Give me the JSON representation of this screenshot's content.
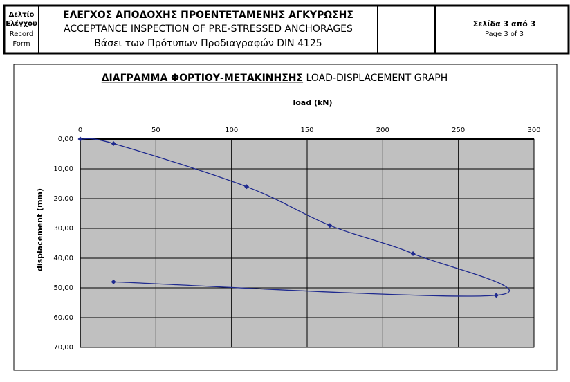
{
  "header": {
    "form_label": [
      "Δελτίο",
      "Ελέγχου",
      "Record",
      "Form"
    ],
    "title": [
      "ΕΛΕΓΧΟΣ ΑΠΟΔΟΧΗΣ ΠΡΟΕΝΤΕΤΑΜΕΝΗΣ ΑΓΚΥΡΩΣΗΣ",
      "ACCEPTANCE INSPECTION OF PRE-STRESSED ANCHORAGES",
      "Βάσει των Πρότυπων Προδιαγραφών DIN 4125"
    ],
    "page": [
      "Σελίδα 3 από 3",
      "Page 3 of 3"
    ]
  },
  "chart_data": {
    "type": "line",
    "title": "ΔΙΑΓΡΑΜΜΑ ΦΟΡΤΙΟΥ-ΜΕΤΑΚΙΝΗΣΗΣ",
    "subtitle": "LOAD-DISPLACEMENT GRAPH",
    "x_label": "load (kN)",
    "y_label": "displacement (mm)",
    "xlim": [
      0,
      300
    ],
    "xticks": [
      0,
      50,
      100,
      150,
      200,
      250,
      300
    ],
    "ylim": [
      0,
      70
    ],
    "y_inverted": true,
    "yticks": [
      {
        "value": 0,
        "label": "0,00"
      },
      {
        "value": 10,
        "label": "10,00"
      },
      {
        "value": 20,
        "label": "20,00"
      },
      {
        "value": 30,
        "label": "30,00"
      },
      {
        "value": 40,
        "label": "40,00"
      },
      {
        "value": 50,
        "label": "50,00"
      },
      {
        "value": 60,
        "label": "60,00"
      },
      {
        "value": 70,
        "label": "70,00"
      }
    ],
    "grid": true,
    "smooth": true,
    "series": [
      {
        "color": "#1f2a8f",
        "x": [
          0,
          22,
          110,
          165,
          220,
          275,
          22
        ],
        "values": [
          0,
          1.5,
          16,
          29,
          38.5,
          52.5,
          48
        ]
      }
    ]
  }
}
